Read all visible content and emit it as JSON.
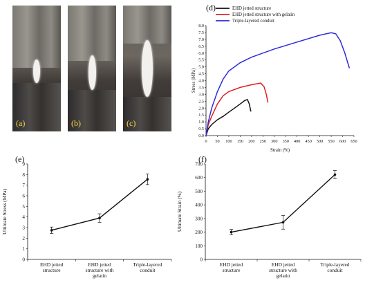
{
  "photos": [
    {
      "label": "(a)"
    },
    {
      "label": "(b)"
    },
    {
      "label": "(c)"
    }
  ],
  "chart_data": [
    {
      "type": "line",
      "panel": "(d)",
      "xlabel": "Strain (%)",
      "ylabel": "Stress (MPa)",
      "xlim": [
        0,
        650
      ],
      "ylim": [
        0,
        8.0
      ],
      "x_ticks": [
        "0",
        "50",
        "100",
        "150",
        "200",
        "250",
        "300",
        "350",
        "400",
        "450",
        "500",
        "550",
        "600",
        "650"
      ],
      "y_ticks": [
        "0.0",
        "0.5",
        "1.0",
        "1.5",
        "2.0",
        "2.5",
        "3.0",
        "3.5",
        "4.0",
        "4.5",
        "5.0",
        "5.5",
        "6.0",
        "6.5",
        "7.0",
        "7.5",
        "8.0"
      ],
      "legend": "top-left",
      "grid": false,
      "series": [
        {
          "name": "EHD jetted structure",
          "color": "#111111",
          "x": [
            0,
            10,
            25,
            50,
            75,
            100,
            125,
            150,
            170,
            182,
            190,
            197
          ],
          "y": [
            0,
            0.5,
            0.8,
            1.15,
            1.4,
            1.7,
            2.0,
            2.3,
            2.55,
            2.62,
            2.3,
            1.75
          ]
        },
        {
          "name": "EHD jetted structure with gelatin",
          "color": "#e02020",
          "x": [
            0,
            10,
            25,
            50,
            75,
            100,
            150,
            200,
            240,
            255,
            265,
            272
          ],
          "y": [
            0,
            0.8,
            1.4,
            2.3,
            2.9,
            3.2,
            3.5,
            3.7,
            3.82,
            3.55,
            3.0,
            2.4
          ]
        },
        {
          "name": "Triple-layered conduit",
          "color": "#2d2bd8",
          "x": [
            0,
            10,
            25,
            50,
            75,
            100,
            150,
            200,
            300,
            400,
            500,
            550,
            570,
            590,
            610,
            630
          ],
          "y": [
            0,
            1.0,
            2.0,
            3.2,
            4.1,
            4.7,
            5.3,
            5.7,
            6.3,
            6.8,
            7.3,
            7.48,
            7.4,
            6.9,
            6.0,
            4.9
          ]
        }
      ]
    },
    {
      "type": "line",
      "panel": "(e)",
      "ylabel": "Ultimate Stress (MPa)",
      "ylim": [
        0,
        9
      ],
      "y_ticks": [
        "0",
        "1",
        "2",
        "3",
        "4",
        "5",
        "6",
        "7",
        "8",
        "9"
      ],
      "categories": [
        "EHD jetted structure",
        "EHD jetted structure with gelatin",
        "Triple-layered conduit"
      ],
      "category_lines": [
        [
          "EHD jetted",
          "structure"
        ],
        [
          "EHD jetted",
          "structure with",
          "gelatin"
        ],
        [
          "Triple-layered",
          "conduit"
        ]
      ],
      "values": [
        2.75,
        3.9,
        7.55
      ],
      "error": [
        0.3,
        0.4,
        0.5
      ]
    },
    {
      "type": "line",
      "panel": "(f)",
      "ylabel": "Ultimate Strain (%)",
      "ylim": [
        0,
        700
      ],
      "y_ticks": [
        "0",
        "100",
        "200",
        "300",
        "400",
        "500",
        "600",
        "700"
      ],
      "categories": [
        "EHD jetted structure",
        "EHD jetted structure with gelatin",
        "Triple-layered conduit"
      ],
      "category_lines": [
        [
          "EHD jetted",
          "structure"
        ],
        [
          "EHD jetted",
          "structure with",
          "gelatin"
        ],
        [
          "Triple-layered",
          "conduit"
        ]
      ],
      "values": [
        200,
        272,
        622
      ],
      "error": [
        20,
        50,
        30
      ]
    }
  ]
}
